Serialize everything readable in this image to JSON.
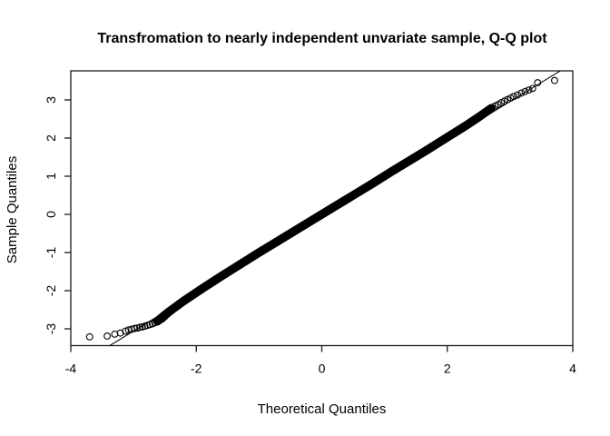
{
  "figure": {
    "background_color": "#ffffff",
    "foreground_color": "#000000"
  },
  "chart_data": {
    "type": "scatter",
    "subtype": "qq-plot",
    "title": "Transfromation to nearly independent unvariate sample, Q-Q plot",
    "xlabel": "Theoretical Quantiles",
    "ylabel": "Sample Quantiles",
    "xlim": [
      -4,
      4
    ],
    "ylim": [
      -3.44,
      3.76
    ],
    "xticks": [
      -4,
      -2,
      0,
      2,
      4
    ],
    "yticks": [
      -3,
      -2,
      -1,
      0,
      1,
      2,
      3
    ],
    "grid": false,
    "legend": "none",
    "marker": "open-circle",
    "marker_color": "#000000",
    "line_color": "#000000",
    "reference_line": {
      "x1": -3.38,
      "y1": -3.44,
      "x2": 3.8,
      "y2": 3.76
    },
    "dense_band": {
      "note": "solid black band of thousands of densely overlapping open circles lying along y = x",
      "points": [
        [
          -2.62,
          -2.8
        ],
        [
          -2.45,
          -2.57
        ],
        [
          -2.2,
          -2.27
        ],
        [
          -1.9,
          -1.94
        ],
        [
          -1.6,
          -1.62
        ],
        [
          -1.3,
          -1.31
        ],
        [
          -1.0,
          -1.0
        ],
        [
          -0.7,
          -0.7
        ],
        [
          -0.4,
          -0.4
        ],
        [
          -0.1,
          -0.1
        ],
        [
          0.2,
          0.2
        ],
        [
          0.5,
          0.5
        ],
        [
          0.8,
          0.8
        ],
        [
          1.1,
          1.11
        ],
        [
          1.4,
          1.41
        ],
        [
          1.7,
          1.71
        ],
        [
          2.0,
          2.02
        ],
        [
          2.3,
          2.33
        ],
        [
          2.5,
          2.55
        ],
        [
          2.7,
          2.78
        ]
      ]
    },
    "points": [
      [
        -3.7,
        -3.21
      ],
      [
        -3.42,
        -3.19
      ],
      [
        -3.3,
        -3.14
      ],
      [
        -3.21,
        -3.11
      ],
      [
        -3.13,
        -3.06
      ],
      [
        -3.08,
        -3.03
      ],
      [
        -3.03,
        -3.01
      ],
      [
        -2.98,
        -2.99
      ],
      [
        -2.94,
        -2.98
      ],
      [
        -2.9,
        -2.96
      ],
      [
        -2.86,
        -2.95
      ],
      [
        -2.82,
        -2.93
      ],
      [
        -2.78,
        -2.91
      ],
      [
        -2.74,
        -2.89
      ],
      [
        -2.7,
        -2.87
      ],
      [
        -2.66,
        -2.84
      ],
      [
        -2.62,
        -2.81
      ],
      [
        -2.58,
        -2.78
      ],
      [
        -2.54,
        -2.74
      ],
      [
        -2.5,
        -2.68
      ],
      [
        -2.46,
        -2.62
      ],
      [
        -2.42,
        -2.56
      ],
      [
        -2.37,
        -2.49
      ],
      [
        -2.32,
        -2.43
      ],
      [
        -2.27,
        -2.37
      ],
      [
        -2.22,
        -2.3
      ],
      [
        -2.17,
        -2.24
      ],
      [
        -2.11,
        -2.17
      ],
      [
        -2.06,
        -2.11
      ],
      [
        2.06,
        2.1
      ],
      [
        2.12,
        2.16
      ],
      [
        2.18,
        2.22
      ],
      [
        2.24,
        2.28
      ],
      [
        2.3,
        2.35
      ],
      [
        2.36,
        2.41
      ],
      [
        2.42,
        2.47
      ],
      [
        2.48,
        2.54
      ],
      [
        2.54,
        2.6
      ],
      [
        2.6,
        2.67
      ],
      [
        2.66,
        2.73
      ],
      [
        2.71,
        2.8
      ],
      [
        2.76,
        2.84
      ],
      [
        2.81,
        2.88
      ],
      [
        2.86,
        2.93
      ],
      [
        2.91,
        2.97
      ],
      [
        2.96,
        3.01
      ],
      [
        3.01,
        3.05
      ],
      [
        3.06,
        3.09
      ],
      [
        3.12,
        3.13
      ],
      [
        3.18,
        3.18
      ],
      [
        3.24,
        3.22
      ],
      [
        3.3,
        3.26
      ],
      [
        3.36,
        3.3
      ],
      [
        3.44,
        3.45
      ],
      [
        3.71,
        3.51
      ]
    ]
  }
}
